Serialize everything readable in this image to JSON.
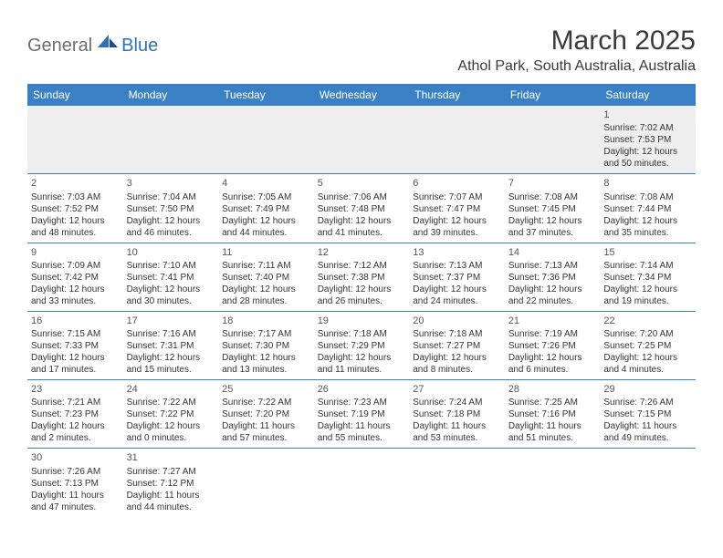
{
  "logo": {
    "general": "General",
    "blue": "Blue"
  },
  "title": "March 2025",
  "location": "Athol Park, South Australia, Australia",
  "colors": {
    "header_bg": "#3a80c4",
    "header_text": "#ffffff",
    "border": "#3a80c4",
    "firstrow_bg": "#eeeeee",
    "logo_gray": "#6d6e71",
    "logo_blue": "#2f71b8",
    "title_color": "#3a3a3a",
    "cell_text": "#333333"
  },
  "weekdays": [
    "Sunday",
    "Monday",
    "Tuesday",
    "Wednesday",
    "Thursday",
    "Friday",
    "Saturday"
  ],
  "weeks": [
    [
      null,
      null,
      null,
      null,
      null,
      null,
      {
        "n": "1",
        "sr": "Sunrise: 7:02 AM",
        "ss": "Sunset: 7:53 PM",
        "d1": "Daylight: 12 hours",
        "d2": "and 50 minutes."
      }
    ],
    [
      {
        "n": "2",
        "sr": "Sunrise: 7:03 AM",
        "ss": "Sunset: 7:52 PM",
        "d1": "Daylight: 12 hours",
        "d2": "and 48 minutes."
      },
      {
        "n": "3",
        "sr": "Sunrise: 7:04 AM",
        "ss": "Sunset: 7:50 PM",
        "d1": "Daylight: 12 hours",
        "d2": "and 46 minutes."
      },
      {
        "n": "4",
        "sr": "Sunrise: 7:05 AM",
        "ss": "Sunset: 7:49 PM",
        "d1": "Daylight: 12 hours",
        "d2": "and 44 minutes."
      },
      {
        "n": "5",
        "sr": "Sunrise: 7:06 AM",
        "ss": "Sunset: 7:48 PM",
        "d1": "Daylight: 12 hours",
        "d2": "and 41 minutes."
      },
      {
        "n": "6",
        "sr": "Sunrise: 7:07 AM",
        "ss": "Sunset: 7:47 PM",
        "d1": "Daylight: 12 hours",
        "d2": "and 39 minutes."
      },
      {
        "n": "7",
        "sr": "Sunrise: 7:08 AM",
        "ss": "Sunset: 7:45 PM",
        "d1": "Daylight: 12 hours",
        "d2": "and 37 minutes."
      },
      {
        "n": "8",
        "sr": "Sunrise: 7:08 AM",
        "ss": "Sunset: 7:44 PM",
        "d1": "Daylight: 12 hours",
        "d2": "and 35 minutes."
      }
    ],
    [
      {
        "n": "9",
        "sr": "Sunrise: 7:09 AM",
        "ss": "Sunset: 7:42 PM",
        "d1": "Daylight: 12 hours",
        "d2": "and 33 minutes."
      },
      {
        "n": "10",
        "sr": "Sunrise: 7:10 AM",
        "ss": "Sunset: 7:41 PM",
        "d1": "Daylight: 12 hours",
        "d2": "and 30 minutes."
      },
      {
        "n": "11",
        "sr": "Sunrise: 7:11 AM",
        "ss": "Sunset: 7:40 PM",
        "d1": "Daylight: 12 hours",
        "d2": "and 28 minutes."
      },
      {
        "n": "12",
        "sr": "Sunrise: 7:12 AM",
        "ss": "Sunset: 7:38 PM",
        "d1": "Daylight: 12 hours",
        "d2": "and 26 minutes."
      },
      {
        "n": "13",
        "sr": "Sunrise: 7:13 AM",
        "ss": "Sunset: 7:37 PM",
        "d1": "Daylight: 12 hours",
        "d2": "and 24 minutes."
      },
      {
        "n": "14",
        "sr": "Sunrise: 7:13 AM",
        "ss": "Sunset: 7:36 PM",
        "d1": "Daylight: 12 hours",
        "d2": "and 22 minutes."
      },
      {
        "n": "15",
        "sr": "Sunrise: 7:14 AM",
        "ss": "Sunset: 7:34 PM",
        "d1": "Daylight: 12 hours",
        "d2": "and 19 minutes."
      }
    ],
    [
      {
        "n": "16",
        "sr": "Sunrise: 7:15 AM",
        "ss": "Sunset: 7:33 PM",
        "d1": "Daylight: 12 hours",
        "d2": "and 17 minutes."
      },
      {
        "n": "17",
        "sr": "Sunrise: 7:16 AM",
        "ss": "Sunset: 7:31 PM",
        "d1": "Daylight: 12 hours",
        "d2": "and 15 minutes."
      },
      {
        "n": "18",
        "sr": "Sunrise: 7:17 AM",
        "ss": "Sunset: 7:30 PM",
        "d1": "Daylight: 12 hours",
        "d2": "and 13 minutes."
      },
      {
        "n": "19",
        "sr": "Sunrise: 7:18 AM",
        "ss": "Sunset: 7:29 PM",
        "d1": "Daylight: 12 hours",
        "d2": "and 11 minutes."
      },
      {
        "n": "20",
        "sr": "Sunrise: 7:18 AM",
        "ss": "Sunset: 7:27 PM",
        "d1": "Daylight: 12 hours",
        "d2": "and 8 minutes."
      },
      {
        "n": "21",
        "sr": "Sunrise: 7:19 AM",
        "ss": "Sunset: 7:26 PM",
        "d1": "Daylight: 12 hours",
        "d2": "and 6 minutes."
      },
      {
        "n": "22",
        "sr": "Sunrise: 7:20 AM",
        "ss": "Sunset: 7:25 PM",
        "d1": "Daylight: 12 hours",
        "d2": "and 4 minutes."
      }
    ],
    [
      {
        "n": "23",
        "sr": "Sunrise: 7:21 AM",
        "ss": "Sunset: 7:23 PM",
        "d1": "Daylight: 12 hours",
        "d2": "and 2 minutes."
      },
      {
        "n": "24",
        "sr": "Sunrise: 7:22 AM",
        "ss": "Sunset: 7:22 PM",
        "d1": "Daylight: 12 hours",
        "d2": "and 0 minutes."
      },
      {
        "n": "25",
        "sr": "Sunrise: 7:22 AM",
        "ss": "Sunset: 7:20 PM",
        "d1": "Daylight: 11 hours",
        "d2": "and 57 minutes."
      },
      {
        "n": "26",
        "sr": "Sunrise: 7:23 AM",
        "ss": "Sunset: 7:19 PM",
        "d1": "Daylight: 11 hours",
        "d2": "and 55 minutes."
      },
      {
        "n": "27",
        "sr": "Sunrise: 7:24 AM",
        "ss": "Sunset: 7:18 PM",
        "d1": "Daylight: 11 hours",
        "d2": "and 53 minutes."
      },
      {
        "n": "28",
        "sr": "Sunrise: 7:25 AM",
        "ss": "Sunset: 7:16 PM",
        "d1": "Daylight: 11 hours",
        "d2": "and 51 minutes."
      },
      {
        "n": "29",
        "sr": "Sunrise: 7:26 AM",
        "ss": "Sunset: 7:15 PM",
        "d1": "Daylight: 11 hours",
        "d2": "and 49 minutes."
      }
    ],
    [
      {
        "n": "30",
        "sr": "Sunrise: 7:26 AM",
        "ss": "Sunset: 7:13 PM",
        "d1": "Daylight: 11 hours",
        "d2": "and 47 minutes."
      },
      {
        "n": "31",
        "sr": "Sunrise: 7:27 AM",
        "ss": "Sunset: 7:12 PM",
        "d1": "Daylight: 11 hours",
        "d2": "and 44 minutes."
      },
      null,
      null,
      null,
      null,
      null
    ]
  ]
}
